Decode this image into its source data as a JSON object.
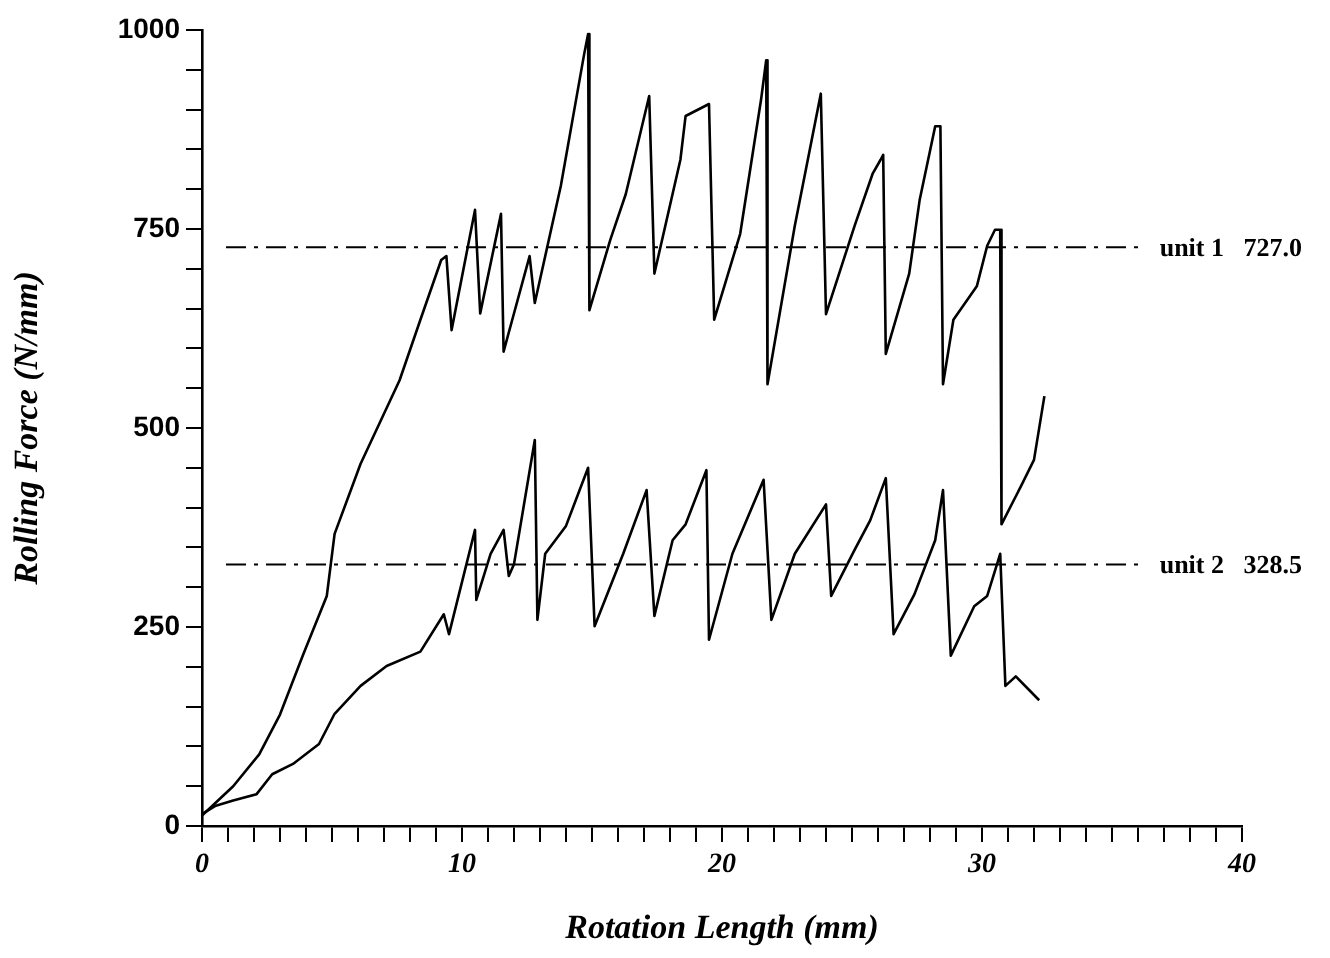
{
  "chart_data": {
    "type": "line",
    "xlabel": "Rotation Length (mm)",
    "ylabel": "Rolling Force (N/mm)",
    "xlim": [
      0,
      40
    ],
    "ylim": [
      0,
      1000
    ],
    "xticks": [
      0,
      {
        "value": 1,
        "label": null
      },
      {
        "value": 2,
        "label": null
      },
      {
        "value": 3,
        "label": null
      },
      {
        "value": 4,
        "label": null
      },
      {
        "value": 5,
        "label": null
      },
      {
        "value": 6,
        "label": null
      },
      {
        "value": 7,
        "label": null
      },
      {
        "value": 8,
        "label": null
      },
      {
        "value": 9,
        "label": null
      },
      10,
      {
        "value": 11,
        "label": null
      },
      {
        "value": 12,
        "label": null
      },
      {
        "value": 13,
        "label": null
      },
      {
        "value": 14,
        "label": null
      },
      {
        "value": 15,
        "label": null
      },
      {
        "value": 16,
        "label": null
      },
      {
        "value": 17,
        "label": null
      },
      {
        "value": 18,
        "label": null
      },
      {
        "value": 19,
        "label": null
      },
      20,
      {
        "value": 21,
        "label": null
      },
      {
        "value": 22,
        "label": null
      },
      {
        "value": 23,
        "label": null
      },
      {
        "value": 24,
        "label": null
      },
      {
        "value": 25,
        "label": null
      },
      {
        "value": 26,
        "label": null
      },
      {
        "value": 27,
        "label": null
      },
      {
        "value": 28,
        "label": null
      },
      {
        "value": 29,
        "label": null
      },
      30,
      {
        "value": 31,
        "label": null
      },
      {
        "value": 32,
        "label": null
      },
      {
        "value": 33,
        "label": null
      },
      {
        "value": 34,
        "label": null
      },
      {
        "value": 35,
        "label": null
      },
      {
        "value": 36,
        "label": null
      },
      {
        "value": 37,
        "label": null
      },
      {
        "value": 38,
        "label": null
      },
      {
        "value": 39,
        "label": null
      },
      40
    ],
    "yticks": [
      0,
      {
        "value": 50,
        "label": null
      },
      {
        "value": 100,
        "label": null
      },
      {
        "value": 150,
        "label": null
      },
      {
        "value": 200,
        "label": null
      },
      250,
      {
        "value": 300,
        "label": null
      },
      {
        "value": 350,
        "label": null
      },
      {
        "value": 400,
        "label": null
      },
      {
        "value": 450,
        "label": null
      },
      500,
      {
        "value": 550,
        "label": null
      },
      {
        "value": 600,
        "label": null
      },
      {
        "value": 650,
        "label": null
      },
      {
        "value": 700,
        "label": null
      },
      750,
      {
        "value": 800,
        "label": null
      },
      {
        "value": 850,
        "label": null
      },
      {
        "value": 900,
        "label": null
      },
      {
        "value": 950,
        "label": null
      },
      1000
    ],
    "grid": false,
    "legend": false,
    "marker": "none",
    "line_style": "solid",
    "series": [
      {
        "color": "#000000",
        "x": [
          0,
          1.2,
          2.2,
          3,
          3.9,
          4.8,
          5.1,
          6.1,
          7.6,
          8.4,
          9.2,
          9.4,
          9.6,
          10.5,
          10.7,
          11.5,
          11.6,
          12.6,
          12.8,
          13.8,
          14.7,
          14.85,
          14.9,
          15.7,
          16.3,
          17.2,
          17.4,
          18.4,
          18.6,
          19.5,
          19.7,
          20.7,
          21.5,
          21.7,
          21.75,
          22.8,
          23.8,
          24.0,
          25.1,
          25.8,
          26.1,
          26.2,
          26.3,
          27.2,
          27.6,
          28.2,
          28.4,
          28.5,
          28.9,
          29.8,
          30.2,
          30.5,
          30.7,
          30.75,
          31.5,
          32.0,
          32.4
        ],
        "values": [
          13,
          50,
          90,
          140,
          216,
          289,
          367,
          455,
          560,
          636,
          711,
          716,
          623,
          774,
          644,
          769,
          596,
          716,
          657,
          804,
          970,
          995,
          648,
          736,
          794,
          917,
          694,
          837,
          892,
          907,
          636,
          744,
          912,
          962,
          555,
          754,
          920,
          643,
          754,
          820,
          837,
          843,
          593,
          694,
          786,
          879,
          879,
          555,
          636,
          678,
          729,
          749,
          749,
          379,
          427,
          460,
          540
        ]
      },
      {
        "color": "#000000",
        "x": [
          0,
          0.5,
          1.2,
          2.1,
          2.7,
          3.5,
          4.5,
          5.1,
          6.1,
          7.1,
          8.4,
          9.3,
          9.5,
          10.5,
          10.55,
          11.1,
          11.6,
          11.8,
          12.0,
          12.8,
          12.9,
          13.2,
          14.0,
          14.85,
          15.1,
          16.2,
          17.1,
          17.4,
          18.1,
          18.6,
          19.4,
          19.5,
          20.4,
          21.6,
          21.9,
          22.8,
          24.0,
          24.2,
          25.1,
          25.7,
          26.3,
          26.6,
          27.4,
          28.2,
          28.5,
          28.8,
          29.7,
          30.2,
          30.7,
          30.9,
          31.3,
          32.2
        ],
        "values": [
          15,
          25,
          32,
          40,
          65,
          78,
          103,
          141,
          176,
          201,
          219,
          266,
          241,
          372,
          284,
          342,
          372,
          314,
          329,
          485,
          259,
          342,
          377,
          450,
          251,
          342,
          422,
          264,
          359,
          379,
          447,
          234,
          342,
          435,
          259,
          342,
          404,
          289,
          347,
          384,
          437,
          241,
          291,
          359,
          422,
          214,
          276,
          289,
          342,
          176,
          188,
          158
        ]
      }
    ],
    "ref_lines": [
      {
        "axis": "y",
        "value": 727,
        "label": "unit 1   727.0",
        "line_style": "dashed"
      },
      {
        "axis": "y",
        "value": 328.5,
        "label": "unit 2   328.5",
        "line_style": "dashed"
      }
    ]
  }
}
